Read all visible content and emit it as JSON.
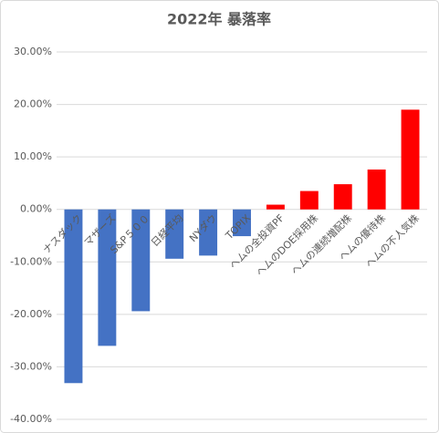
{
  "chart_data": {
    "type": "bar",
    "title": "2022年 暴落率",
    "categories": [
      "ナスダック",
      "マザーズ",
      "S&P５００",
      "日経平均",
      "NYダウ",
      "TOPIX",
      "ヘムの全投資PF",
      "ヘムのDOE採用株",
      "ヘムの連続増配株",
      "ヘムの優待株",
      "ヘムの不人気株"
    ],
    "values": [
      -33.1,
      -26,
      -19.4,
      -9.4,
      -8.8,
      -5.1,
      0.9,
      3.5,
      4.8,
      7.6,
      19
    ],
    "colors": [
      "#4472c4",
      "#4472c4",
      "#4472c4",
      "#4472c4",
      "#4472c4",
      "#4472c4",
      "#ff0000",
      "#ff0000",
      "#ff0000",
      "#ff0000",
      "#ff0000"
    ],
    "ylim": [
      -40,
      30
    ],
    "yticks": [
      {
        "value": -40,
        "label": "-40.00%"
      },
      {
        "value": -30,
        "label": "-30.00%"
      },
      {
        "value": -20,
        "label": "-20.00%"
      },
      {
        "value": -10,
        "label": "-10.00%"
      },
      {
        "value": 0,
        "label": "0.00%"
      },
      {
        "value": 10,
        "label": "10.00%"
      },
      {
        "value": 20,
        "label": "20.00%"
      },
      {
        "value": 30,
        "label": "30.00%"
      }
    ],
    "grid": true
  }
}
